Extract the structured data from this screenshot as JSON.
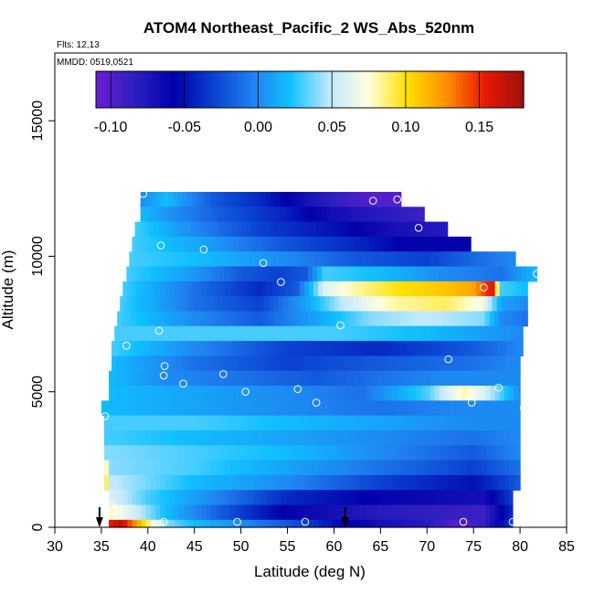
{
  "chart_data": {
    "type": "heatmap",
    "title": "ATOM4 Northeast_Pacific_2 WS_Abs_520nm",
    "subtitle_flights": "Flts: 12,13",
    "subtitle_dates": "MMDD: 0519,0521",
    "xlabel": "Latitude (deg N)",
    "ylabel": "Altitude (m)",
    "xlim": [
      30,
      85
    ],
    "ylim": [
      0,
      17500
    ],
    "x_ticks": [
      "30",
      "35",
      "40",
      "45",
      "50",
      "55",
      "60",
      "65",
      "70",
      "75",
      "80",
      "85"
    ],
    "y_ticks": [
      "0",
      "5000",
      "10000",
      "15000"
    ],
    "colorbar": {
      "range": [
        -0.11,
        0.18
      ],
      "ticks": [
        "-0.10",
        "-0.05",
        "0.00",
        "0.05",
        "0.10",
        "0.15"
      ],
      "colors": [
        "#6a1fd1",
        "#2c1fc0",
        "#0000aa",
        "#0a3fcf",
        "#1f7ff0",
        "#10c0ff",
        "#c0e8ff",
        "#ffffe0",
        "#ffe000",
        "#ff9000",
        "#e81800",
        "#9c1010"
      ]
    },
    "layers": [
      {
        "alt": 12100,
        "lat_start": 39.2,
        "lat_end": 67.2,
        "profile": [
          [
            39.2,
            0.0
          ],
          [
            42,
            0.02
          ],
          [
            47,
            -0.02
          ],
          [
            52,
            -0.04
          ],
          [
            57,
            -0.07
          ],
          [
            61,
            -0.09
          ],
          [
            64,
            -0.1
          ],
          [
            67.2,
            -0.1
          ]
        ]
      },
      {
        "alt": 11550,
        "lat_start": 39.2,
        "lat_end": 69.7,
        "profile": [
          [
            39.2,
            0.02
          ],
          [
            43,
            0.0
          ],
          [
            48,
            -0.02
          ],
          [
            54,
            -0.04
          ],
          [
            60,
            -0.07
          ],
          [
            65,
            -0.08
          ],
          [
            69.7,
            -0.09
          ]
        ]
      },
      {
        "alt": 11000,
        "lat_start": 38.6,
        "lat_end": 72.2,
        "profile": [
          [
            38.6,
            0.03
          ],
          [
            45,
            0.0
          ],
          [
            52,
            -0.03
          ],
          [
            60,
            -0.05
          ],
          [
            66,
            -0.07
          ],
          [
            72.2,
            -0.08
          ]
        ]
      },
      {
        "alt": 10450,
        "lat_start": 38.3,
        "lat_end": 74.7,
        "profile": [
          [
            38.3,
            0.03
          ],
          [
            46,
            0.01
          ],
          [
            54,
            -0.02
          ],
          [
            62,
            -0.04
          ],
          [
            68,
            -0.06
          ],
          [
            74.7,
            -0.06
          ]
        ]
      },
      {
        "alt": 9900,
        "lat_start": 38.0,
        "lat_end": 79.5,
        "profile": [
          [
            38.0,
            0.03
          ],
          [
            46,
            0.02
          ],
          [
            55,
            0.0
          ],
          [
            62,
            -0.02
          ],
          [
            70,
            -0.03
          ],
          [
            79.5,
            0.0
          ]
        ]
      },
      {
        "alt": 9350,
        "lat_start": 37.7,
        "lat_end": 81.8,
        "profile": [
          [
            37.7,
            0.03
          ],
          [
            44,
            0.01
          ],
          [
            50,
            -0.02
          ],
          [
            54,
            -0.03
          ],
          [
            57,
            -0.02
          ],
          [
            59,
            0.03
          ],
          [
            65,
            0.02
          ],
          [
            72,
            0.0
          ],
          [
            78,
            -0.01
          ],
          [
            81.8,
            0.02
          ]
        ]
      },
      {
        "alt": 8800,
        "lat_start": 37.3,
        "lat_end": 80.8,
        "profile": [
          [
            37.3,
            0.03
          ],
          [
            45,
            -0.01
          ],
          [
            52,
            -0.04
          ],
          [
            56,
            -0.02
          ],
          [
            59,
            0.06
          ],
          [
            62,
            0.08
          ],
          [
            67,
            0.1
          ],
          [
            72,
            0.11
          ],
          [
            75,
            0.12
          ],
          [
            77,
            0.16
          ],
          [
            78,
            0.03
          ],
          [
            80.8,
            0.02
          ]
        ]
      },
      {
        "alt": 8250,
        "lat_start": 37.0,
        "lat_end": 80.8,
        "profile": [
          [
            37.0,
            0.03
          ],
          [
            45,
            -0.01
          ],
          [
            52,
            -0.03
          ],
          [
            57,
            0.01
          ],
          [
            61,
            0.05
          ],
          [
            66,
            0.08
          ],
          [
            72,
            0.09
          ],
          [
            76,
            0.07
          ],
          [
            78,
            0.01
          ],
          [
            80.8,
            0.0
          ]
        ]
      },
      {
        "alt": 7700,
        "lat_start": 36.7,
        "lat_end": 80.8,
        "profile": [
          [
            36.7,
            0.03
          ],
          [
            45,
            0.0
          ],
          [
            52,
            -0.02
          ],
          [
            58,
            0.01
          ],
          [
            64,
            0.04
          ],
          [
            70,
            0.05
          ],
          [
            76,
            0.04
          ],
          [
            78,
            0.0
          ],
          [
            80.8,
            -0.01
          ]
        ]
      },
      {
        "alt": 7150,
        "lat_start": 36.4,
        "lat_end": 80.3,
        "profile": [
          [
            36.4,
            0.03
          ],
          [
            50,
            0.03
          ],
          [
            60,
            0.03
          ],
          [
            70,
            0.02
          ],
          [
            75,
            0.01
          ],
          [
            80.3,
            0.0
          ]
        ]
      },
      {
        "alt": 6600,
        "lat_start": 36.1,
        "lat_end": 80.3,
        "profile": [
          [
            36.1,
            0.03
          ],
          [
            45,
            0.0
          ],
          [
            55,
            -0.03
          ],
          [
            65,
            -0.04
          ],
          [
            75,
            -0.02
          ],
          [
            80.3,
            0.0
          ]
        ]
      },
      {
        "alt": 6050,
        "lat_start": 36.1,
        "lat_end": 80.0,
        "profile": [
          [
            36.1,
            0.02
          ],
          [
            45,
            -0.01
          ],
          [
            55,
            -0.03
          ],
          [
            65,
            -0.02
          ],
          [
            75,
            -0.01
          ],
          [
            80.0,
            0.0
          ]
        ]
      },
      {
        "alt": 5500,
        "lat_start": 35.8,
        "lat_end": 80.0,
        "profile": [
          [
            35.8,
            0.02
          ],
          [
            42,
            0.0
          ],
          [
            50,
            -0.01
          ],
          [
            58,
            -0.02
          ],
          [
            65,
            -0.01
          ],
          [
            72,
            0.0
          ],
          [
            80.0,
            0.0
          ]
        ]
      },
      {
        "alt": 4950,
        "lat_start": 35.8,
        "lat_end": 80.0,
        "profile": [
          [
            35.8,
            0.02
          ],
          [
            45,
            0.01
          ],
          [
            55,
            0.0
          ],
          [
            63,
            -0.01
          ],
          [
            70,
            0.03
          ],
          [
            74,
            0.08
          ],
          [
            76,
            0.06
          ],
          [
            80.0,
            0.0
          ]
        ]
      },
      {
        "alt": 4400,
        "lat_start": 35.0,
        "lat_end": 80.0,
        "profile": [
          [
            35.0,
            0.02
          ],
          [
            45,
            0.01
          ],
          [
            55,
            0.0
          ],
          [
            65,
            -0.01
          ],
          [
            75,
            0.0
          ],
          [
            80.0,
            0.0
          ]
        ]
      },
      {
        "alt": 3850,
        "lat_start": 35.3,
        "lat_end": 80.0,
        "profile": [
          [
            35.3,
            0.03
          ],
          [
            45,
            0.03
          ],
          [
            55,
            0.02
          ],
          [
            65,
            0.01
          ],
          [
            75,
            0.0
          ],
          [
            80.0,
            0.0
          ]
        ]
      },
      {
        "alt": 3300,
        "lat_start": 35.3,
        "lat_end": 80.0,
        "profile": [
          [
            35.3,
            0.03
          ],
          [
            45,
            0.02
          ],
          [
            55,
            0.01
          ],
          [
            65,
            0.0
          ],
          [
            75,
            -0.01
          ],
          [
            80.0,
            0.0
          ]
        ]
      },
      {
        "alt": 2750,
        "lat_start": 35.3,
        "lat_end": 80.0,
        "profile": [
          [
            35.3,
            0.04
          ],
          [
            45,
            0.03
          ],
          [
            55,
            0.02
          ],
          [
            65,
            0.0
          ],
          [
            75,
            -0.02
          ],
          [
            80.0,
            0.0
          ]
        ]
      },
      {
        "alt": 2200,
        "lat_start": 35.3,
        "lat_end": 80.0,
        "profile": [
          [
            35.3,
            0.1
          ],
          [
            36,
            0.04
          ],
          [
            45,
            0.03
          ],
          [
            55,
            0.01
          ],
          [
            65,
            -0.01
          ],
          [
            75,
            -0.03
          ],
          [
            80.0,
            -0.01
          ]
        ]
      },
      {
        "alt": 1650,
        "lat_start": 35.3,
        "lat_end": 80.0,
        "profile": [
          [
            35.3,
            0.11
          ],
          [
            36,
            0.05
          ],
          [
            45,
            0.02
          ],
          [
            55,
            0.0
          ],
          [
            65,
            -0.03
          ],
          [
            75,
            -0.05
          ],
          [
            80.0,
            -0.02
          ]
        ]
      },
      {
        "alt": 1100,
        "lat_start": 35.8,
        "lat_end": 79.2,
        "profile": [
          [
            35.8,
            0.06
          ],
          [
            40,
            0.03
          ],
          [
            47,
            0.0
          ],
          [
            55,
            -0.04
          ],
          [
            65,
            -0.06
          ],
          [
            76,
            -0.07
          ],
          [
            79.2,
            -0.03
          ]
        ]
      },
      {
        "alt": 550,
        "lat_start": 35.8,
        "lat_end": 79.2,
        "profile": [
          [
            35.8,
            0.08
          ],
          [
            38,
            0.06
          ],
          [
            42,
            0.02
          ],
          [
            48,
            -0.02
          ],
          [
            55,
            -0.06
          ],
          [
            65,
            -0.08
          ],
          [
            76,
            -0.09
          ],
          [
            79.2,
            -0.04
          ]
        ]
      },
      {
        "alt": 0,
        "lat_start": 35.8,
        "lat_end": 79.2,
        "profile": [
          [
            35.8,
            0.15
          ],
          [
            37,
            0.17
          ],
          [
            38.5,
            0.13
          ],
          [
            40,
            0.09
          ],
          [
            42,
            0.04
          ],
          [
            45,
            0.02
          ],
          [
            50,
            0.0
          ],
          [
            55,
            -0.02
          ],
          [
            60,
            -0.05
          ],
          [
            65,
            -0.07
          ],
          [
            70,
            -0.08
          ],
          [
            73,
            -0.1
          ],
          [
            76,
            -0.09
          ],
          [
            79.2,
            -0.03
          ]
        ]
      }
    ],
    "samples": [
      [
        39.5,
        12300
      ],
      [
        64.2,
        12050
      ],
      [
        66.8,
        12100
      ],
      [
        69.1,
        11050
      ],
      [
        41.4,
        10400
      ],
      [
        46,
        10250
      ],
      [
        52.4,
        9750
      ],
      [
        54.3,
        9050
      ],
      [
        76.1,
        8850
      ],
      [
        81.8,
        9350
      ],
      [
        41.2,
        7250
      ],
      [
        60.7,
        7450
      ],
      [
        37.7,
        6700
      ],
      [
        41.8,
        5950
      ],
      [
        41.7,
        5600
      ],
      [
        48.1,
        5650
      ],
      [
        43.8,
        5300
      ],
      [
        50.5,
        5000
      ],
      [
        56.1,
        5100
      ],
      [
        58.1,
        4600
      ],
      [
        72.3,
        6200
      ],
      [
        77.7,
        5150
      ],
      [
        74.8,
        4600
      ],
      [
        80.4,
        4400
      ],
      [
        35.4,
        4100
      ],
      [
        36.1,
        800
      ],
      [
        35.9,
        450
      ],
      [
        41.7,
        200
      ],
      [
        49.6,
        200
      ],
      [
        56.9,
        200
      ],
      [
        73.9,
        200
      ],
      [
        79.2,
        200
      ]
    ],
    "arrows": [
      34.8,
      61.2
    ]
  }
}
